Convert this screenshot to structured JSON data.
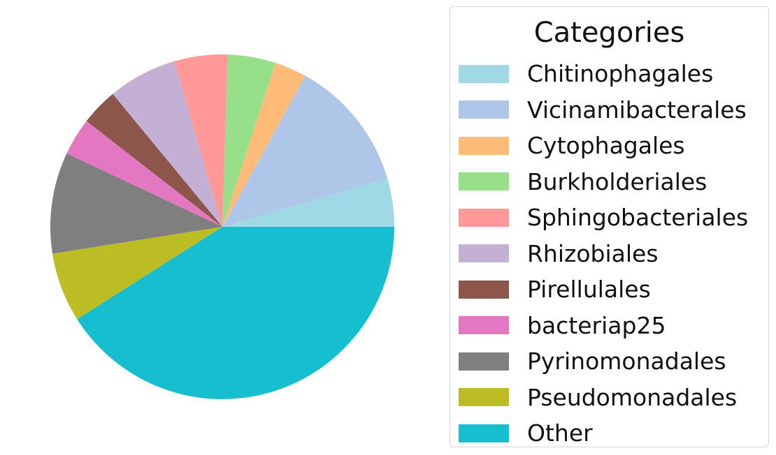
{
  "chart_data": {
    "type": "pie",
    "start_angle_deg": 0,
    "direction": "counterclockwise",
    "legend": {
      "title": "Categories",
      "placement": "right"
    },
    "slices": [
      {
        "label": "Chitinophagales",
        "value": 4.5,
        "color": "#9fd9e5"
      },
      {
        "label": "Vicinamibacterales",
        "value": 12.5,
        "color": "#aec7e8"
      },
      {
        "label": "Cytophagales",
        "value": 3.0,
        "color": "#ffbb78"
      },
      {
        "label": "Burkholderiales",
        "value": 4.5,
        "color": "#98df8a"
      },
      {
        "label": "Sphingobacteriales",
        "value": 5.0,
        "color": "#ff9896"
      },
      {
        "label": "Rhizobiales",
        "value": 6.5,
        "color": "#c5b0d5"
      },
      {
        "label": "Pirellulales",
        "value": 3.5,
        "color": "#8c564b"
      },
      {
        "label": "bacteriap25",
        "value": 3.5,
        "color": "#e377c2"
      },
      {
        "label": "Pyrinomonadales",
        "value": 9.5,
        "color": "#7f7f7f"
      },
      {
        "label": "Pseudomonadales",
        "value": 6.5,
        "color": "#bcbd22"
      },
      {
        "label": "Other",
        "value": 41.0,
        "color": "#17becf"
      }
    ]
  }
}
